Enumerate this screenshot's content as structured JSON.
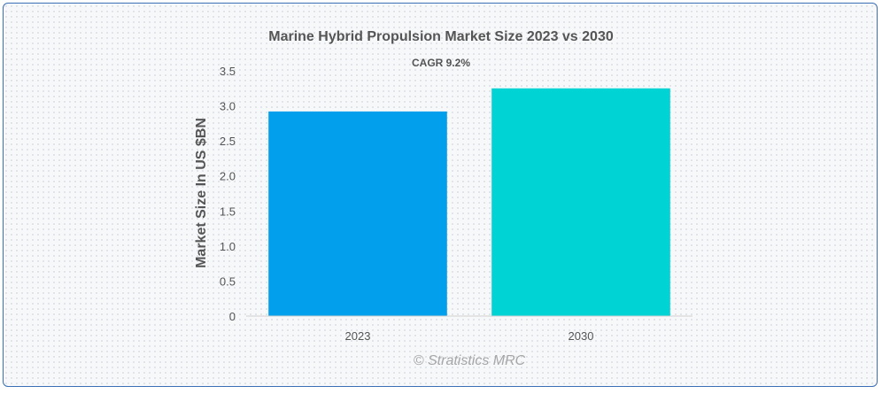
{
  "colors": {
    "border": "#3b6fb5",
    "text": "#555555",
    "credit": "#a6a6a6"
  },
  "chart_data": {
    "type": "bar",
    "title": "Marine Hybrid Propulsion Market Size 2023 vs 2030",
    "subtitle": "CAGR 9.2%",
    "xlabel": "",
    "ylabel": "Market Size In US $BN",
    "categories": [
      "2023",
      "2030"
    ],
    "values": [
      2.92,
      3.25
    ],
    "bar_colors": [
      "#029fec",
      "#00d3d4"
    ],
    "ylim": [
      0,
      3.5
    ],
    "yticks": [
      "0",
      "0.5",
      "1.0",
      "1.5",
      "2.0",
      "2.5",
      "3.0",
      "3.5"
    ],
    "grid": false,
    "legend": "none",
    "credit": "© Stratistics MRC"
  }
}
